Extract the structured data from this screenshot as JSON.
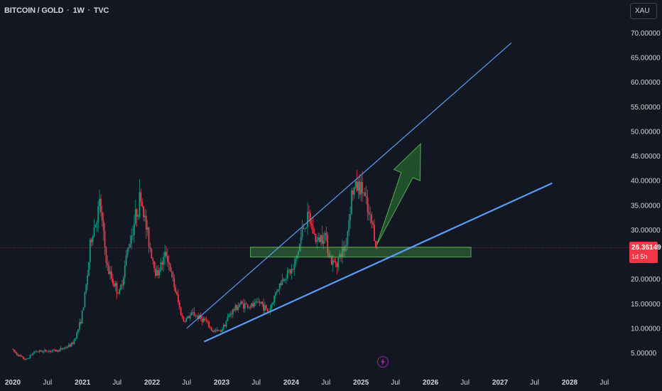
{
  "header": {
    "symbol": "BITCOIN / GOLD",
    "interval": "1W",
    "exchange": "TVC",
    "separator": "·"
  },
  "toolbar": {
    "currency_button": "XAU"
  },
  "price_tag": {
    "value": "26.36149",
    "countdown": "1d 5h"
  },
  "colors": {
    "background": "#131722",
    "up": "#089981",
    "down": "#f23645",
    "trendline": "#5b9cf6",
    "zone_fill": "rgba(76,175,80,0.35)",
    "zone_border": "#4caf50",
    "arrow": "#2e7d32",
    "price_line": "#f23645"
  },
  "icons": {
    "event_marker": "lightning-icon"
  },
  "chart_data": {
    "type": "candlestick",
    "title": "BITCOIN / GOLD · 1W · TVC",
    "ylim": [
      3.5,
      72
    ],
    "y_ticks": [
      "70.00000",
      "65.00000",
      "60.00000",
      "55.00000",
      "50.00000",
      "45.00000",
      "40.00000",
      "35.00000",
      "30.00000",
      "25.00000",
      "20.00000",
      "15.00000",
      "10.00000",
      "5.00000"
    ],
    "x_labels": [
      "2020",
      "Jul",
      "2021",
      "Jul",
      "2022",
      "Jul",
      "2023",
      "Jul",
      "2024",
      "Jul",
      "2025",
      "Jul",
      "2026",
      "Jul",
      "2027",
      "Jul",
      "2028",
      "Jul"
    ],
    "x_label_years": [
      "2020",
      "2021",
      "2022",
      "2023",
      "2024",
      "2025",
      "2026",
      "2027",
      "2028"
    ],
    "current_price": 26.36149,
    "price_path": [
      [
        "2020-01-01",
        5.8
      ],
      [
        "2020-03-15",
        3.6
      ],
      [
        "2020-05-01",
        5.3
      ],
      [
        "2020-09-01",
        5.5
      ],
      [
        "2020-11-15",
        6.8
      ],
      [
        "2021-01-01",
        12.0
      ],
      [
        "2021-02-20",
        28.0
      ],
      [
        "2021-04-10",
        35.5
      ],
      [
        "2021-05-20",
        22.0
      ],
      [
        "2021-07-20",
        17.0
      ],
      [
        "2021-09-01",
        26.0
      ],
      [
        "2021-10-20",
        34.0
      ],
      [
        "2021-11-10",
        37.0
      ],
      [
        "2021-12-20",
        28.0
      ],
      [
        "2022-02-01",
        21.0
      ],
      [
        "2022-03-25",
        25.5
      ],
      [
        "2022-05-15",
        17.0
      ],
      [
        "2022-06-20",
        11.5
      ],
      [
        "2022-08-10",
        13.0
      ],
      [
        "2022-10-15",
        11.5
      ],
      [
        "2022-11-20",
        9.5
      ],
      [
        "2023-01-01",
        9.4
      ],
      [
        "2023-02-20",
        13.0
      ],
      [
        "2023-04-15",
        15.0
      ],
      [
        "2023-06-15",
        14.5
      ],
      [
        "2023-08-01",
        15.3
      ],
      [
        "2023-09-10",
        13.3
      ],
      [
        "2023-10-25",
        18.0
      ],
      [
        "2023-12-10",
        21.0
      ],
      [
        "2024-01-20",
        22.0
      ],
      [
        "2024-03-10",
        30.5
      ],
      [
        "2024-04-10",
        32.5
      ],
      [
        "2024-05-20",
        27.5
      ],
      [
        "2024-07-01",
        29.5
      ],
      [
        "2024-08-10",
        23.0
      ],
      [
        "2024-09-10",
        24.0
      ],
      [
        "2024-10-20",
        27.0
      ],
      [
        "2024-11-20",
        37.5
      ],
      [
        "2024-12-20",
        39.0
      ],
      [
        "2025-01-20",
        38.0
      ],
      [
        "2025-02-15",
        33.0
      ],
      [
        "2025-03-10",
        31.0
      ],
      [
        "2025-04-01",
        26.36
      ]
    ],
    "drawings": {
      "upper_trendline": [
        [
          "2022-07-01",
          10.0
        ],
        [
          "2027-03-01",
          68.0
        ]
      ],
      "lower_trendline": [
        [
          "2022-10-01",
          7.3
        ],
        [
          "2027-10-01",
          39.5
        ]
      ],
      "support_zone": {
        "from": "2023-06-01",
        "to": "2026-08-01",
        "low": 24.5,
        "high": 26.5
      },
      "arrow": {
        "from": [
          "2025-03-25",
          27.0
        ],
        "to": [
          "2025-11-10",
          47.5
        ]
      }
    }
  }
}
